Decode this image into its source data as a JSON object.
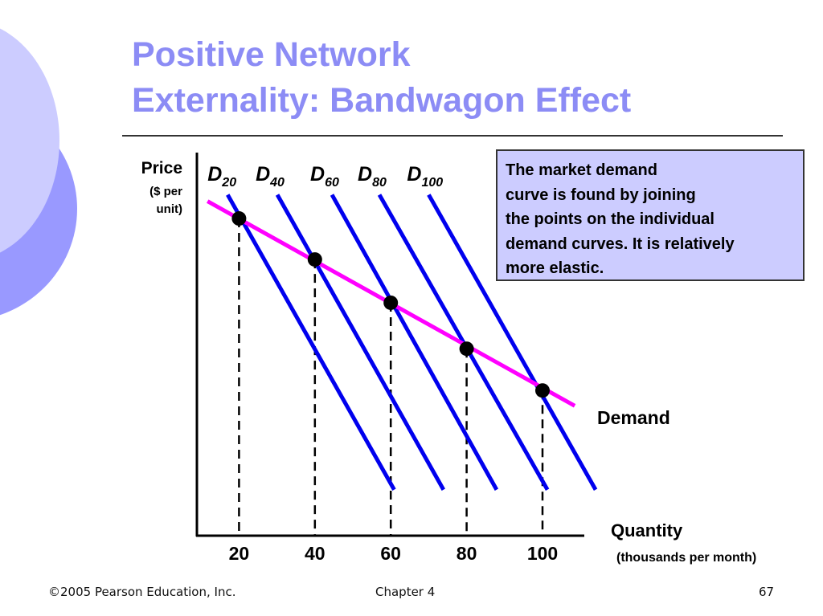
{
  "slide": {
    "title_line1": "Positive Network",
    "title_line2": "Externality: Bandwagon Effect",
    "info_box": {
      "lines": [
        "The market demand",
        "curve is found by joining",
        "the points on the individual",
        "demand curves.  It is relatively",
        "more elastic."
      ]
    },
    "footer": {
      "copyright": "©2005 Pearson Education, Inc.",
      "chapter": "Chapter 4",
      "page": "67"
    },
    "colors": {
      "title": "#8c8cf5",
      "individual_demand": "#0000ee",
      "market_demand": "#ff00ff",
      "box_fill": "#ccccff",
      "circle_light": "#ccccff",
      "circle_dark": "#9999ff"
    }
  },
  "chart_data": {
    "type": "line",
    "title": "Positive Network Externality: Bandwagon Effect",
    "ylabel_lines": [
      "Price",
      "($ per",
      "unit)"
    ],
    "xlabel": "Quantity",
    "xlabel_sub": "(thousands per month)",
    "xticks": [
      20,
      40,
      60,
      80,
      100
    ],
    "xlim": [
      9,
      111
    ],
    "ylim": [
      0,
      10
    ],
    "grid": false,
    "individual_curves": [
      {
        "name": "D",
        "sub": "20",
        "x": [
          17.0,
          60.9
        ],
        "y": [
          8.9,
          1.2
        ]
      },
      {
        "name": "D",
        "sub": "40",
        "x": [
          30.1,
          73.9
        ],
        "y": [
          8.9,
          1.2
        ]
      },
      {
        "name": "D",
        "sub": "60",
        "x": [
          44.5,
          87.9
        ],
        "y": [
          8.9,
          1.2
        ]
      },
      {
        "name": "D",
        "sub": "80",
        "x": [
          57.0,
          101.3
        ],
        "y": [
          8.9,
          1.2
        ]
      },
      {
        "name": "D",
        "sub": "100",
        "x": [
          70.0,
          114.0
        ],
        "y": [
          8.9,
          1.2
        ]
      }
    ],
    "market_demand": {
      "name": "Demand",
      "x": [
        11.7,
        108.5
      ],
      "y": [
        8.73,
        3.39
      ]
    },
    "points": [
      {
        "x": 20,
        "y": 8.28
      },
      {
        "x": 40,
        "y": 7.21
      },
      {
        "x": 60,
        "y": 6.08
      },
      {
        "x": 80,
        "y": 4.88
      },
      {
        "x": 100,
        "y": 3.79
      }
    ]
  }
}
